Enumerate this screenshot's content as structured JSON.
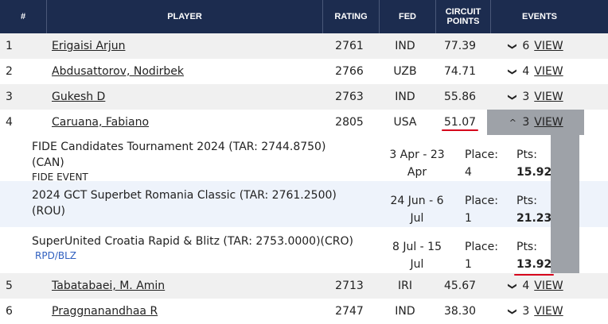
{
  "columns": {
    "rank": "#",
    "player": "PLAYER",
    "rating": "RATING",
    "fed": "FED",
    "circuit_points": "CIRCUIT POINTS",
    "events": "EVENTS"
  },
  "view_label": "VIEW",
  "rows": [
    {
      "rank": "1",
      "player": "Erigaisi Arjun",
      "rating": "2761",
      "fed": "IND",
      "points": "77.39",
      "events": "6"
    },
    {
      "rank": "2",
      "player": "Abdusattorov, Nodirbek",
      "rating": "2766",
      "fed": "UZB",
      "points": "74.71",
      "events": "4"
    },
    {
      "rank": "3",
      "player": "Gukesh D",
      "rating": "2763",
      "fed": "IND",
      "points": "55.86",
      "events": "3"
    },
    {
      "rank": "4",
      "player": "Caruana, Fabiano",
      "rating": "2805",
      "fed": "USA",
      "points": "51.07",
      "events": "3"
    },
    {
      "rank": "5",
      "player": "Tabatabaei, M. Amin",
      "rating": "2713",
      "fed": "IRI",
      "points": "45.67",
      "events": "4"
    },
    {
      "rank": "6",
      "player": "Praggnanandhaa R",
      "rating": "2747",
      "fed": "IND",
      "points": "38.30",
      "events": "3"
    }
  ],
  "expanded_events": [
    {
      "name": "FIDE Candidates Tournament 2024 (TAR: 2744.8750)",
      "country": "(CAN)",
      "type": "FIDE EVENT",
      "date_line1": "3 Apr - 23",
      "date_line2": "Apr",
      "place_label": "Place:",
      "place": "4",
      "pts_label": "Pts:",
      "pts": "15.92"
    },
    {
      "name": "2024 GCT Superbet Romania Classic (TAR: 2761.2500)",
      "country": "(ROU)",
      "type": "",
      "date_line1": "24 Jun - 6",
      "date_line2": "Jul",
      "place_label": "Place:",
      "place": "1",
      "pts_label": "Pts:",
      "pts": "21.23"
    },
    {
      "name": "SuperUnited Croatia Rapid & Blitz (TAR: 2753.0000)(CRO)",
      "country": "",
      "type": "RPD/BLZ",
      "date_line1": "8 Jul - 15",
      "date_line2": "Jul",
      "place_label": "Place:",
      "place": "1",
      "pts_label": "Pts:",
      "pts": "13.92"
    }
  ],
  "icons": {
    "collapsed": "chevron-down-icon",
    "expanded": "chevron-up-icon"
  },
  "colors": {
    "header_bg": "#1c2c4f",
    "highlight": "#d6001c",
    "active_cell": "#9ea2a8",
    "event_type_blue": "#2f5fbf"
  }
}
